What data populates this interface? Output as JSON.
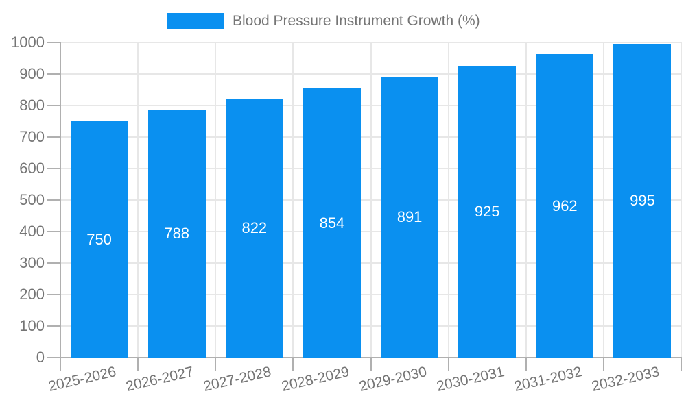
{
  "chart_data": {
    "type": "bar",
    "title": "",
    "legend": {
      "label": "Blood Pressure Instrument Growth (%)",
      "position": "top-center"
    },
    "categories": [
      "2025-2026",
      "2026-2027",
      "2027-2028",
      "2028-2029",
      "2029-2030",
      "2030-2031",
      "2031-2032",
      "2032-2033"
    ],
    "series": [
      {
        "name": "Blood Pressure Instrument Growth (%)",
        "values": [
          750,
          788,
          822,
          854,
          891,
          925,
          962,
          995
        ]
      }
    ],
    "value_labels_shown": true,
    "xlabel": "",
    "ylabel": "",
    "ylim": [
      0,
      1000
    ],
    "yticks": [
      0,
      100,
      200,
      300,
      400,
      500,
      600,
      700,
      800,
      900,
      1000
    ],
    "grid": true,
    "x_label_rotation_deg": -13,
    "colors": {
      "bar": "#0a90f0",
      "value_label": "#ffffff",
      "axis_text": "#757575",
      "axis_line": "#b0b0b0",
      "gridline": "#e7e7e7",
      "background": "#ffffff"
    }
  }
}
